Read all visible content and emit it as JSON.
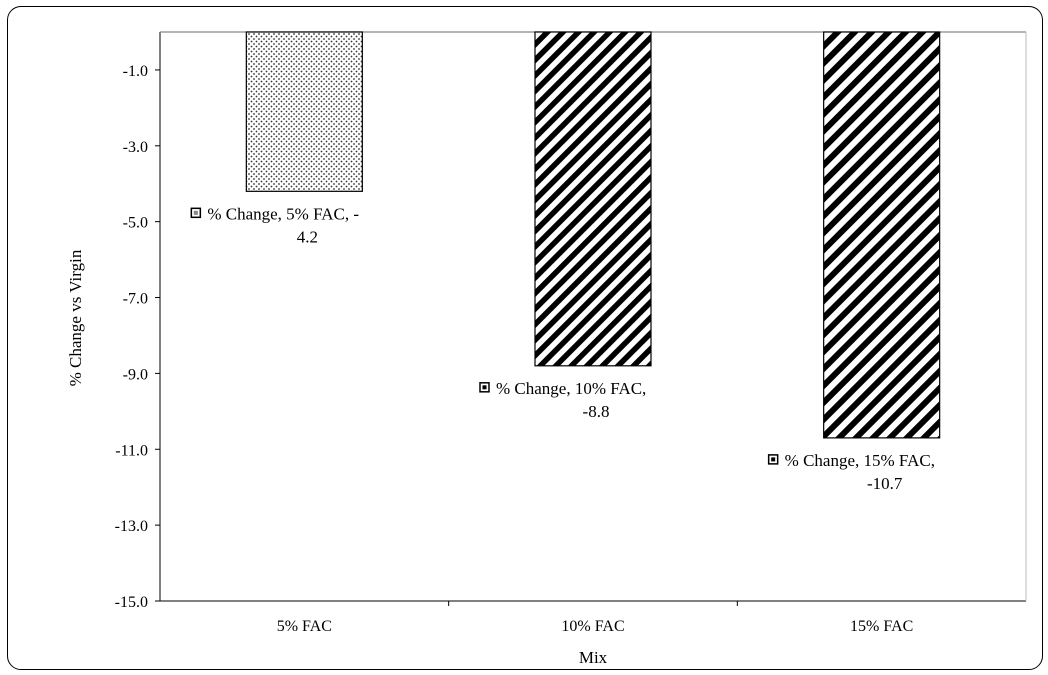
{
  "chart_data": {
    "type": "bar",
    "categories": [
      "5% FAC",
      "10% FAC",
      "15% FAC"
    ],
    "series": [
      {
        "name": "% Change",
        "values": [
          -4.2,
          -8.8,
          -10.7
        ]
      }
    ],
    "xlabel": "Mix",
    "ylabel": "% Change vs Virgin",
    "ylim": [
      -15.0,
      0.0
    ],
    "yticks": [
      "-1.0",
      "-3.0",
      "-5.0",
      "-7.0",
      "-9.0",
      "-11.0",
      "-13.0",
      "-15.0"
    ],
    "ytick_values": [
      -1,
      -3,
      -5,
      -7,
      -9,
      -11,
      -13,
      -15
    ],
    "data_labels": [
      {
        "line1": "% Change, 5% FAC, -",
        "line2": "4.2"
      },
      {
        "line1": "% Change, 10% FAC,",
        "line2": "-8.8"
      },
      {
        "line1": "% Change, 15% FAC,",
        "line2": "-10.7"
      }
    ],
    "patterns": [
      "dots",
      "diagonal-stripes-fine",
      "diagonal-stripes-wide"
    ],
    "grid": false,
    "legend": "none",
    "bar_fill": "#ffffff",
    "bar_stroke": "#000000"
  }
}
